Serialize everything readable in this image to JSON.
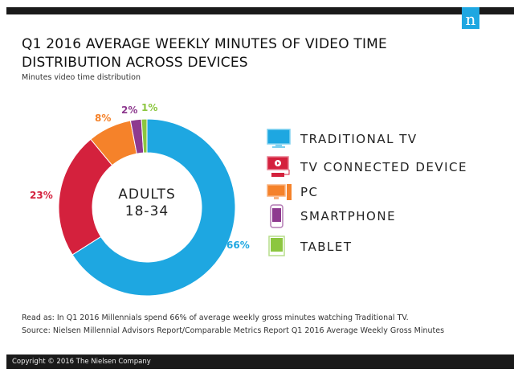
{
  "header": {
    "logo": "n",
    "title": "Q1 2016 AVERAGE WEEKLY MINUTES OF VIDEO TIME DISTRIBUTION ACROSS DEVICES",
    "subtitle": "Minutes video time distribution"
  },
  "chart_data": {
    "type": "pie",
    "variant": "donut",
    "center_label": [
      "ADULTS",
      "18-34"
    ],
    "categories": [
      "Traditional TV",
      "TV Connected Device",
      "PC",
      "Smartphone",
      "Tablet"
    ],
    "values": [
      66,
      23,
      8,
      2,
      1
    ],
    "value_labels": [
      "66%",
      "23%",
      "8%",
      "2%",
      "1%"
    ],
    "colors": [
      "#1ea7e1",
      "#d4213d",
      "#f5822a",
      "#8e3a8f",
      "#8cc63f"
    ],
    "legend": {
      "placement": "right",
      "entries": [
        {
          "label": "TRADITIONAL TV",
          "icon": "tv-icon"
        },
        {
          "label": "TV CONNECTED DEVICE",
          "icon": "tv-connected-device-icon"
        },
        {
          "label": "PC",
          "icon": "pc-icon"
        },
        {
          "label": "SMARTPHONE",
          "icon": "smartphone-icon"
        },
        {
          "label": "TABLET",
          "icon": "tablet-icon"
        }
      ]
    }
  },
  "notes": {
    "read_as": "Read as: In Q1 2016 Millennials spend 66% of average weekly gross minutes watching Traditional TV.",
    "source": "Source: Nielsen Millennial Advisors Report/Comparable Metrics Report Q1 2016 Average Weekly Gross Minutes"
  },
  "footer": {
    "copyright": "Copyright © 2016 The Nielsen Company"
  }
}
